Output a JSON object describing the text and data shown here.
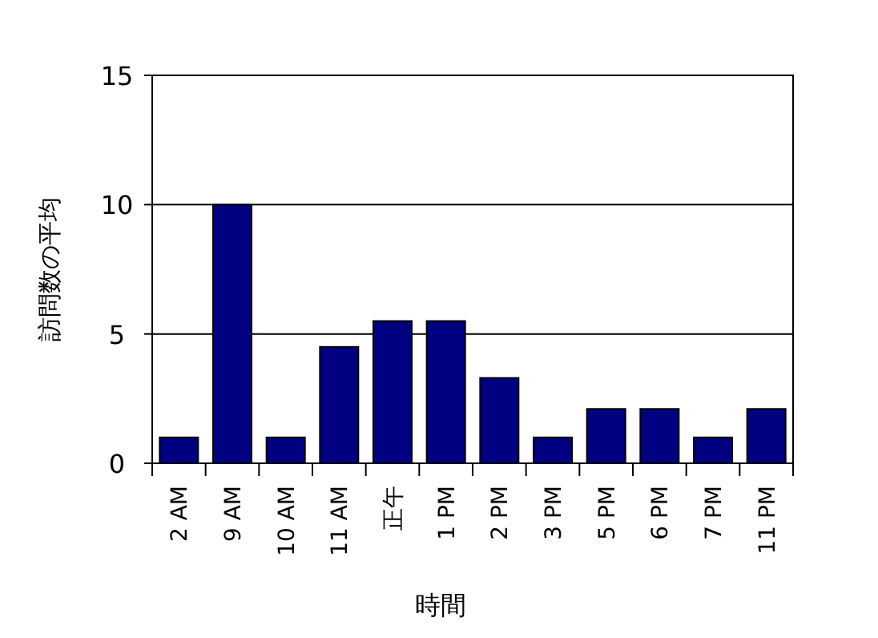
{
  "chart_data": {
    "type": "bar",
    "xlabel": "時間",
    "ylabel": "訪問数の平均",
    "categories": [
      "2 AM",
      "9 AM",
      "10 AM",
      "11 AM",
      "正午",
      "1 PM",
      "2 PM",
      "3 PM",
      "5 PM",
      "6 PM",
      "7 PM",
      "11 PM"
    ],
    "values": [
      1,
      10,
      1,
      4.5,
      5.5,
      5.5,
      3.3,
      1,
      2.1,
      2.1,
      1,
      2.1
    ],
    "color": "#000080",
    "ylim": [
      0,
      15
    ],
    "yticks": [
      0,
      5,
      10,
      15
    ],
    "grid": "y"
  }
}
